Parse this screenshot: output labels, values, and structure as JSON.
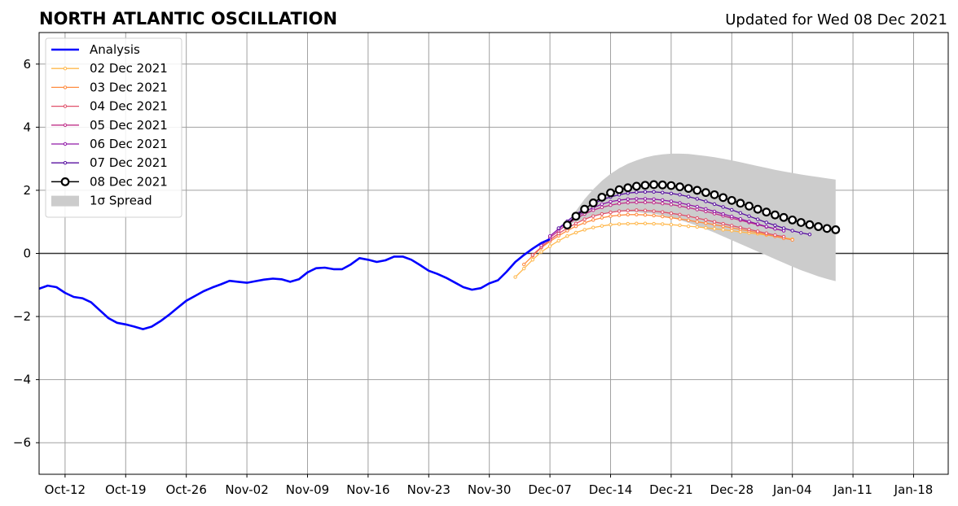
{
  "chart_data": {
    "type": "line",
    "title": "NORTH ATLANTIC OSCILLATION",
    "subtitle": "Updated for Wed 08 Dec 2021",
    "xlabel": "",
    "ylabel": "",
    "x_range": [
      "2021-10-09",
      "2022-01-22"
    ],
    "ylim": [
      -7,
      7
    ],
    "y_ticks": [
      -6,
      -4,
      -2,
      0,
      2,
      4,
      6
    ],
    "x_tick_dates": [
      "2021-10-12",
      "2021-10-19",
      "2021-10-26",
      "2021-11-02",
      "2021-11-09",
      "2021-11-16",
      "2021-11-23",
      "2021-11-30",
      "2021-12-07",
      "2021-12-14",
      "2021-12-21",
      "2021-12-28",
      "2022-01-04",
      "2022-01-11",
      "2022-01-18"
    ],
    "x_tick_labels": [
      "Oct-12",
      "Oct-19",
      "Oct-26",
      "Nov-02",
      "Nov-09",
      "Nov-16",
      "Nov-23",
      "Nov-30",
      "Dec-07",
      "Dec-14",
      "Dec-21",
      "Dec-28",
      "Jan-04",
      "Jan-11",
      "Jan-18"
    ],
    "grid": true,
    "legend_position": "top-left",
    "analysis": {
      "name": "Analysis",
      "color": "#0000ff",
      "start": "2021-10-09",
      "values": [
        -1.12,
        -1.02,
        -1.07,
        -1.25,
        -1.38,
        -1.42,
        -1.55,
        -1.8,
        -2.05,
        -2.2,
        -2.25,
        -2.32,
        -2.4,
        -2.32,
        -2.15,
        -1.95,
        -1.72,
        -1.5,
        -1.35,
        -1.2,
        -1.08,
        -0.98,
        -0.87,
        -0.9,
        -0.93,
        -0.88,
        -0.83,
        -0.8,
        -0.82,
        -0.9,
        -0.82,
        -0.6,
        -0.47,
        -0.45,
        -0.5,
        -0.5,
        -0.35,
        -0.15,
        -0.2,
        -0.27,
        -0.22,
        -0.1,
        -0.1,
        -0.2,
        -0.37,
        -0.55,
        -0.65,
        -0.77,
        -0.92,
        -1.07,
        -1.15,
        -1.1,
        -0.95,
        -0.85,
        -0.58,
        -0.27,
        -0.05,
        0.15,
        0.33,
        0.45
      ]
    },
    "forecasts": [
      {
        "name": "02 Dec 2021",
        "color": "#ffb84d",
        "start": "2021-12-03",
        "values": [
          -0.75,
          -0.48,
          -0.2,
          0.05,
          0.23,
          0.4,
          0.55,
          0.66,
          0.75,
          0.82,
          0.87,
          0.91,
          0.93,
          0.94,
          0.95,
          0.95,
          0.94,
          0.93,
          0.91,
          0.89,
          0.86,
          0.84,
          0.81,
          0.78,
          0.75,
          0.72,
          0.68,
          0.65,
          0.62,
          0.58,
          0.55,
          0.5,
          0.45
        ]
      },
      {
        "name": "03 Dec 2021",
        "color": "#ff8c40",
        "start": "2021-12-04",
        "values": [
          -0.35,
          -0.08,
          0.18,
          0.38,
          0.56,
          0.72,
          0.86,
          0.97,
          1.06,
          1.13,
          1.18,
          1.21,
          1.23,
          1.23,
          1.22,
          1.2,
          1.17,
          1.13,
          1.09,
          1.05,
          1.0,
          0.96,
          0.91,
          0.86,
          0.81,
          0.76,
          0.71,
          0.66,
          0.6,
          0.54,
          0.48,
          0.43
        ]
      },
      {
        "name": "04 Dec 2021",
        "color": "#e0506a",
        "start": "2021-12-05",
        "values": [
          -0.05,
          0.2,
          0.43,
          0.63,
          0.8,
          0.95,
          1.08,
          1.18,
          1.25,
          1.3,
          1.34,
          1.36,
          1.37,
          1.36,
          1.34,
          1.31,
          1.27,
          1.23,
          1.18,
          1.12,
          1.06,
          1.0,
          0.94,
          0.88,
          0.82,
          0.76,
          0.7,
          0.64,
          0.58,
          0.53
        ]
      },
      {
        "name": "05 Dec 2021",
        "color": "#c0308a",
        "start": "2021-12-06",
        "values": [
          0.25,
          0.5,
          0.72,
          0.92,
          1.1,
          1.25,
          1.37,
          1.46,
          1.53,
          1.58,
          1.61,
          1.62,
          1.62,
          1.61,
          1.58,
          1.55,
          1.5,
          1.45,
          1.39,
          1.33,
          1.26,
          1.19,
          1.12,
          1.05,
          0.98,
          0.91,
          0.84,
          0.78,
          0.72
        ]
      },
      {
        "name": "06 Dec 2021",
        "color": "#9018a8",
        "start": "2021-12-07",
        "values": [
          0.55,
          0.78,
          0.98,
          1.16,
          1.32,
          1.45,
          1.56,
          1.64,
          1.69,
          1.72,
          1.73,
          1.73,
          1.72,
          1.69,
          1.65,
          1.6,
          1.54,
          1.48,
          1.41,
          1.33,
          1.25,
          1.17,
          1.09,
          1.01,
          0.93,
          0.85,
          0.78,
          0.72
        ]
      },
      {
        "name": "07 Dec 2021",
        "color": "#5810a0",
        "start": "2021-12-08",
        "values": [
          0.8,
          1.02,
          1.24,
          1.42,
          1.58,
          1.7,
          1.79,
          1.86,
          1.91,
          1.94,
          1.95,
          1.95,
          1.93,
          1.9,
          1.86,
          1.8,
          1.73,
          1.65,
          1.56,
          1.47,
          1.38,
          1.28,
          1.18,
          1.08,
          0.98,
          0.89,
          0.8,
          0.72,
          0.65,
          0.6
        ]
      },
      {
        "name": "08 Dec 2021",
        "color": "#000000",
        "start": "2021-12-09",
        "values": [
          0.9,
          1.18,
          1.4,
          1.6,
          1.78,
          1.92,
          2.02,
          2.08,
          2.13,
          2.16,
          2.18,
          2.17,
          2.15,
          2.11,
          2.06,
          2.0,
          1.93,
          1.86,
          1.77,
          1.68,
          1.59,
          1.5,
          1.4,
          1.31,
          1.22,
          1.14,
          1.06,
          0.98,
          0.91,
          0.85,
          0.79,
          0.75
        ]
      }
    ],
    "spread": {
      "name": "1σ Spread",
      "color": "#cccccc",
      "start": "2021-12-09",
      "upper": [
        0.9,
        1.35,
        1.72,
        2.03,
        2.3,
        2.52,
        2.7,
        2.84,
        2.95,
        3.04,
        3.1,
        3.14,
        3.16,
        3.16,
        3.15,
        3.12,
        3.09,
        3.05,
        3.0,
        2.95,
        2.89,
        2.83,
        2.77,
        2.71,
        2.65,
        2.6,
        2.55,
        2.5,
        2.46,
        2.42,
        2.38,
        2.34
      ],
      "lower": [
        0.9,
        1.0,
        1.08,
        1.17,
        1.26,
        1.32,
        1.34,
        1.32,
        1.31,
        1.28,
        1.26,
        1.2,
        1.14,
        1.06,
        0.97,
        0.88,
        0.77,
        0.66,
        0.54,
        0.42,
        0.3,
        0.18,
        0.06,
        -0.06,
        -0.18,
        -0.3,
        -0.42,
        -0.53,
        -0.63,
        -0.73,
        -0.81,
        -0.88
      ]
    }
  }
}
